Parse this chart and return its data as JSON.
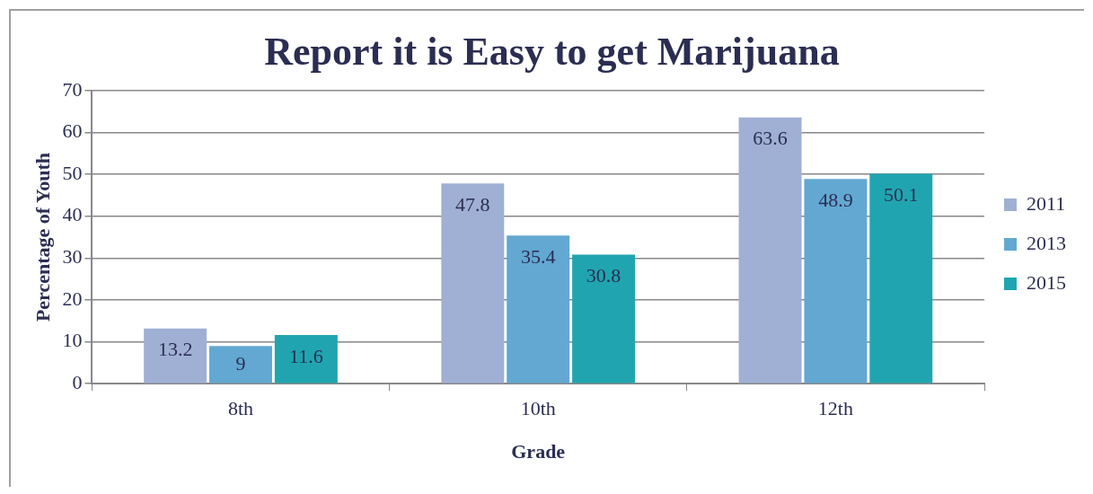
{
  "chart_data": {
    "type": "bar",
    "title": "Report it is Easy to get Marijuana",
    "xlabel": "Grade",
    "ylabel": "Percentage of Youth",
    "categories": [
      "8th",
      "10th",
      "12th"
    ],
    "series": [
      {
        "name": "2011",
        "color": "#9fb0d4",
        "values": [
          13.2,
          47.8,
          63.6
        ]
      },
      {
        "name": "2013",
        "color": "#62a8d2",
        "values": [
          9,
          35.4,
          48.9
        ]
      },
      {
        "name": "2015",
        "color": "#20a5b0",
        "values": [
          11.6,
          30.8,
          50.1
        ]
      }
    ],
    "ylim": [
      0,
      70
    ],
    "yticks": [
      0,
      10,
      20,
      30,
      40,
      50,
      60,
      70
    ],
    "grid": "y",
    "legend": "right",
    "data_labels": true
  }
}
